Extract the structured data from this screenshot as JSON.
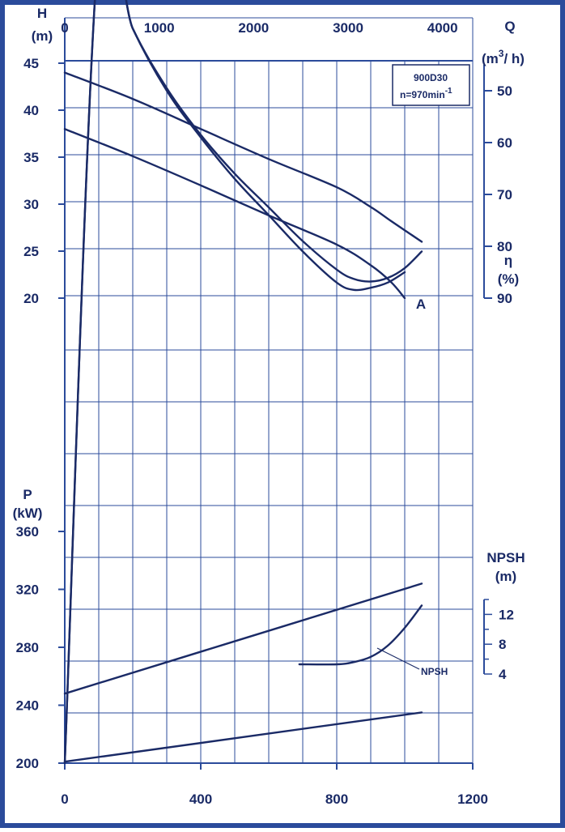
{
  "chart_data": {
    "type": "line",
    "colors": {
      "frame": "#2b4b9b",
      "curve": "#1a2a66",
      "grid": "#2b4b9b"
    },
    "annotation_box": {
      "line1": "900D30",
      "line2": "n=970min",
      "line2_sup": "-1"
    },
    "axes": {
      "x_bottom": {
        "ticks": [
          "0",
          "400",
          "800",
          "1200"
        ],
        "values": [
          0,
          400,
          800,
          1200
        ],
        "range": [
          0,
          1200
        ]
      },
      "x_top": {
        "title": "Q",
        "unit": "(m",
        "unit_sup": "3",
        "unit_end": "/ h)",
        "ticks": [
          "0",
          "1000",
          "2000",
          "3000",
          "4000"
        ],
        "values": [
          0,
          1000,
          2000,
          3000,
          4000
        ],
        "range": [
          0,
          4320
        ]
      },
      "y_head": {
        "title": "H",
        "unit": "(m)",
        "ticks": [
          "20",
          "25",
          "30",
          "35",
          "40",
          "45"
        ],
        "values": [
          20,
          25,
          30,
          35,
          40,
          45
        ],
        "range": [
          20,
          45
        ]
      },
      "y_eff": {
        "title": "η",
        "unit": "(%)",
        "ticks": [
          "50",
          "60",
          "70",
          "80",
          "90"
        ],
        "values": [
          50,
          60,
          70,
          80,
          90
        ],
        "range": [
          45,
          90
        ]
      },
      "y_power": {
        "title": "P",
        "unit": "(kW)",
        "ticks": [
          "200",
          "240",
          "280",
          "320",
          "360"
        ],
        "values": [
          200,
          240,
          280,
          320,
          360
        ],
        "range": [
          200,
          360
        ]
      },
      "y_npsh": {
        "title": "NPSH",
        "unit": "(m)",
        "ticks": [
          "4",
          "8",
          "12"
        ],
        "values": [
          4,
          8,
          12
        ],
        "range": [
          4,
          14
        ]
      }
    },
    "labels": {
      "curve_A": "A",
      "npsh_label": "NPSH"
    },
    "series": {
      "head_upper": {
        "axis": "y_head",
        "x": [
          0,
          200,
          400,
          600,
          800,
          900,
          960,
          1050
        ],
        "y": [
          44,
          41.2,
          38,
          34.8,
          31.8,
          29.7,
          28.2,
          26
        ]
      },
      "head_A": {
        "axis": "y_head",
        "x": [
          0,
          200,
          400,
          600,
          800,
          900,
          960,
          1000
        ],
        "y": [
          38,
          35.1,
          32,
          28.8,
          25.7,
          23.5,
          21.7,
          20
        ]
      },
      "efficiency_upper": {
        "axis": "y_eff",
        "x": [
          0,
          100,
          200,
          300,
          400,
          500,
          600,
          700,
          800,
          850,
          900,
          950,
          1000
        ],
        "y": [
          0,
          22,
          38,
          50,
          59,
          67,
          74,
          81,
          87,
          88.4,
          88,
          87,
          85
        ]
      },
      "efficiency_lower": {
        "axis": "y_eff",
        "x": [
          0,
          100,
          200,
          300,
          400,
          500,
          600,
          700,
          800,
          850,
          900,
          950,
          1000,
          1050
        ],
        "y": [
          0,
          22,
          38,
          49.5,
          58.5,
          66,
          72.5,
          79,
          84.5,
          86.3,
          86.8,
          86.1,
          84.2,
          81
        ]
      },
      "power_upper": {
        "axis": "y_power",
        "x": [
          0,
          1050
        ],
        "y": [
          248,
          324
        ]
      },
      "power_lower": {
        "axis": "y_power",
        "x": [
          0,
          1050
        ],
        "y": [
          201,
          235
        ]
      },
      "npsh": {
        "axis": "y_npsh",
        "x": [
          690,
          800,
          850,
          900,
          950,
          1000,
          1050
        ],
        "y": [
          5.3,
          5.3,
          5.6,
          6.3,
          7.8,
          10.2,
          13.2
        ]
      }
    }
  }
}
